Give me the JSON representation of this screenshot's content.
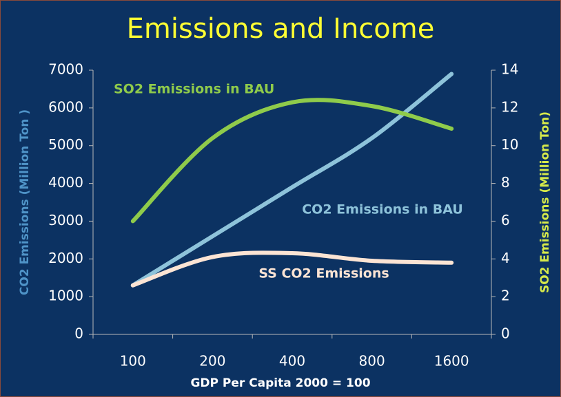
{
  "chart_data": {
    "type": "line",
    "title": "Emissions and Income",
    "x_label": "GDP Per Capita 2000 = 100",
    "y_label": "CO2 Emissions  (Million Ton )",
    "y2_label": "SO2 Emissions (Million Ton)",
    "categories": [
      "100",
      "200",
      "400",
      "800",
      "1600"
    ],
    "ylim": [
      0,
      7000
    ],
    "yticks": [
      0,
      1000,
      2000,
      3000,
      4000,
      5000,
      6000,
      7000
    ],
    "y2lim": [
      0,
      14
    ],
    "y2ticks": [
      0,
      2,
      4,
      6,
      8,
      10,
      12,
      14
    ],
    "series": [
      {
        "name": "CO2 Emissions in BAU",
        "color": "#8ec3da",
        "values": [
          1300,
          2600,
          3900,
          5200,
          6900
        ]
      },
      {
        "name": "SO2 Emissions in BAU",
        "color": "#8fcb4b",
        "axis": "y2",
        "values": [
          6,
          10.4,
          12.3,
          12.1,
          10.9
        ]
      },
      {
        "name": "SS CO2 Emissions",
        "color": "#fce4d4",
        "values": [
          1300,
          2050,
          2150,
          1950,
          1900
        ]
      }
    ]
  }
}
